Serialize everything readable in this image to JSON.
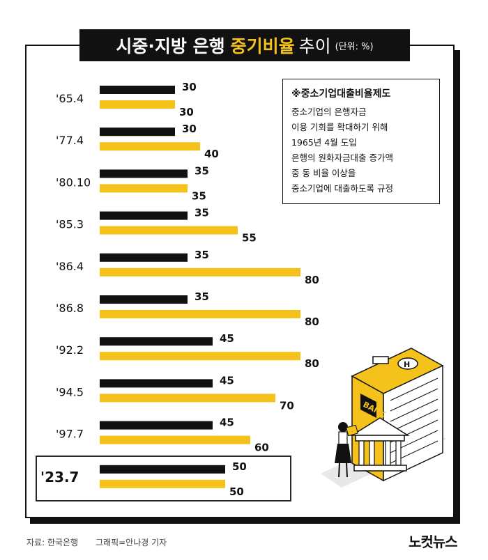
{
  "title": {
    "part1": "시중·지방 은행",
    "part2": "중기비율",
    "part3": "추이",
    "unit": "(단위: %)"
  },
  "note": {
    "title": "※중소기업대출비율제도",
    "lines": [
      "중소기업의 은행자금",
      "이용 기회를 확대하기 위해",
      "1965년 4월 도입",
      "은행의 원화자금대출 증가액",
      "중 동 비율 이상을",
      "중소기업에 대출하도록 규정"
    ]
  },
  "footer": {
    "source": "자료: 한국은행",
    "credit": "그래픽=안나경 기자",
    "logo": "노컷뉴스"
  },
  "colors": {
    "series1": "#111111",
    "series2": "#f5c21b"
  },
  "chart_data": {
    "type": "bar",
    "orientation": "horizontal",
    "categories": [
      "'65.4",
      "'77.4",
      "'80.10",
      "'85.3",
      "'86.4",
      "'86.8",
      "'92.2",
      "'94.5",
      "'97.7",
      "'23.7"
    ],
    "series": [
      {
        "values": [
          30,
          30,
          35,
          35,
          35,
          35,
          45,
          45,
          45,
          50
        ]
      },
      {
        "values": [
          30,
          40,
          35,
          55,
          80,
          80,
          80,
          70,
          60,
          50
        ]
      }
    ],
    "highlight_category": "'23.7"
  }
}
